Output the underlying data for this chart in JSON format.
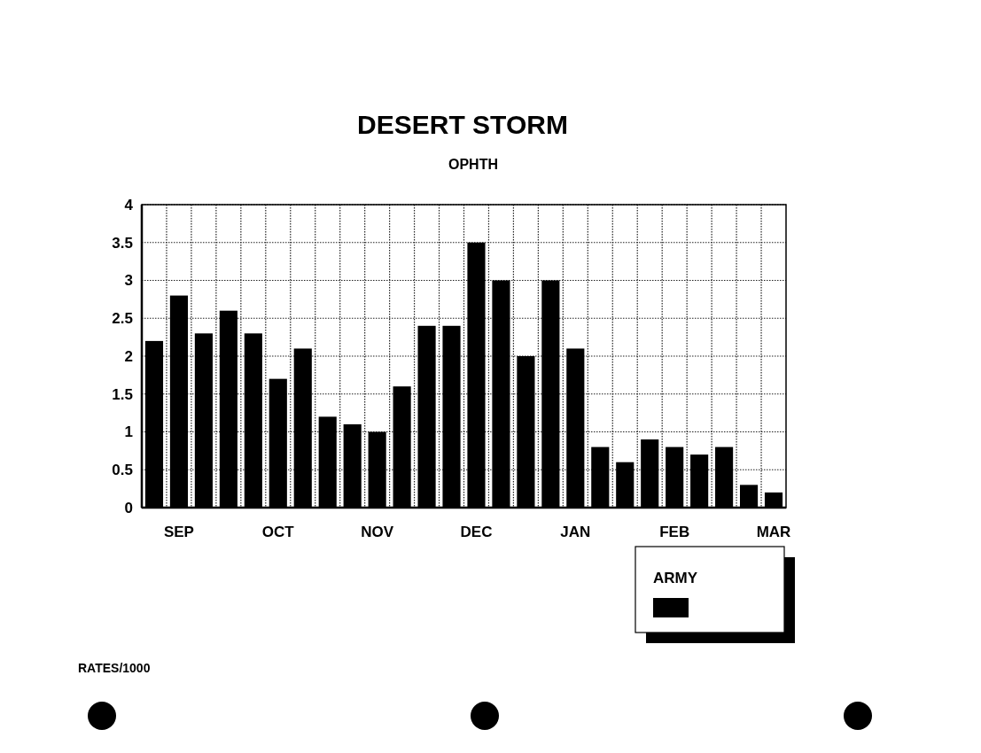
{
  "chart_data": {
    "type": "bar",
    "title": "DESERT STORM",
    "subtitle": "OPHTH",
    "categories": [
      null,
      "SEP",
      null,
      null,
      null,
      "OCT",
      null,
      null,
      null,
      "NOV",
      null,
      null,
      null,
      "DEC",
      null,
      null,
      null,
      "JAN",
      null,
      null,
      null,
      "FEB",
      null,
      null,
      null,
      "MAR"
    ],
    "series": [
      {
        "name": "ARMY",
        "color": "#000000",
        "values": [
          2.2,
          2.8,
          2.3,
          2.6,
          2.3,
          1.7,
          2.1,
          1.2,
          1.1,
          1.0,
          1.6,
          2.4,
          2.4,
          3.5,
          3.0,
          2.0,
          3.0,
          2.1,
          0.8,
          0.6,
          0.9,
          0.8,
          0.7,
          0.8,
          0.3,
          0.2
        ]
      }
    ],
    "ylim": [
      0,
      4
    ],
    "yticks": [
      0,
      0.5,
      1,
      1.5,
      2,
      2.5,
      3,
      3.5,
      4
    ],
    "grid": true,
    "legend": "bottom right",
    "annotations": [
      "RATES/1000"
    ]
  }
}
